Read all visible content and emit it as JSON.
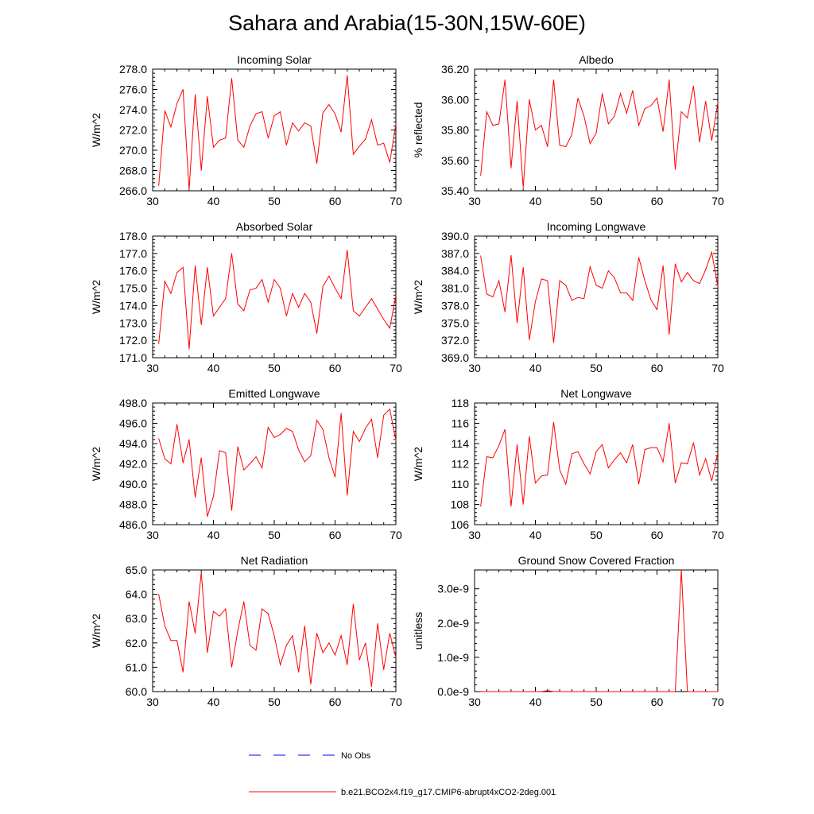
{
  "main_title": "Sahara and Arabia(15-30N,15W-60E)",
  "colors": {
    "model": "#ff0000",
    "obs": "#0000ff",
    "axis": "#000000"
  },
  "legend": [
    {
      "label": "No Obs",
      "style": "dashed",
      "color": "#0000ff"
    },
    {
      "label": "b.e21.BCO2x4.f19_g17.CMIP6-abrupt4xCO2-2deg.001",
      "style": "solid",
      "color": "#ff0000"
    }
  ],
  "chart_data": [
    {
      "type": "line",
      "title": "Incoming Solar",
      "ylabel": "W/m^2",
      "xlim": [
        30,
        70
      ],
      "xticks": [
        "30",
        "40",
        "50",
        "60",
        "70"
      ],
      "ylim": [
        266,
        278
      ],
      "yticks": [
        "266.0",
        "268.0",
        "270.0",
        "272.0",
        "274.0",
        "276.0",
        "278.0"
      ],
      "x": [
        31,
        32,
        33,
        34,
        35,
        36,
        37,
        38,
        39,
        40,
        41,
        42,
        43,
        44,
        45,
        46,
        47,
        48,
        49,
        50,
        51,
        52,
        53,
        54,
        55,
        56,
        57,
        58,
        59,
        60,
        61,
        62,
        63,
        64,
        65,
        66,
        67,
        68,
        69,
        70
      ],
      "series": [
        {
          "name": "b.e21.BCO2x4.f19_g17.CMIP6-abrupt4xCO2-2deg.001",
          "values": [
            266.5,
            273.9,
            272.3,
            274.6,
            276.0,
            266.1,
            275.5,
            268.0,
            275.3,
            270.3,
            271.0,
            271.2,
            277.1,
            271.0,
            270.3,
            272.4,
            273.6,
            273.8,
            271.2,
            273.4,
            273.8,
            270.5,
            272.7,
            271.9,
            272.7,
            272.4,
            268.7,
            273.7,
            274.5,
            273.6,
            271.8,
            277.4,
            269.6,
            270.4,
            271.1,
            273.0,
            270.5,
            270.7,
            268.8,
            272.6
          ]
        }
      ]
    },
    {
      "type": "line",
      "title": "Albedo",
      "ylabel": "% reflected",
      "xlim": [
        30,
        70
      ],
      "xticks": [
        "30",
        "40",
        "50",
        "60",
        "70"
      ],
      "ylim": [
        35.4,
        36.2
      ],
      "yticks": [
        "35.40",
        "35.60",
        "35.80",
        "36.00",
        "36.20"
      ],
      "x": [
        31,
        32,
        33,
        34,
        35,
        36,
        37,
        38,
        39,
        40,
        41,
        42,
        43,
        44,
        45,
        46,
        47,
        48,
        49,
        50,
        51,
        52,
        53,
        54,
        55,
        56,
        57,
        58,
        59,
        60,
        61,
        62,
        63,
        64,
        65,
        66,
        67,
        68,
        69,
        70
      ],
      "series": [
        {
          "name": "b.e21.BCO2x4.f19_g17.CMIP6-abrupt4xCO2-2deg.001",
          "values": [
            35.5,
            35.92,
            35.83,
            35.84,
            36.13,
            35.55,
            35.99,
            35.42,
            36.0,
            35.8,
            35.83,
            35.69,
            36.13,
            35.7,
            35.69,
            35.77,
            36.01,
            35.89,
            35.71,
            35.78,
            36.04,
            35.84,
            35.89,
            36.04,
            35.91,
            36.06,
            35.83,
            35.94,
            35.96,
            36.01,
            35.79,
            36.13,
            35.54,
            35.92,
            35.88,
            36.09,
            35.72,
            35.99,
            35.73,
            35.98
          ]
        }
      ]
    },
    {
      "type": "line",
      "title": "Absorbed Solar",
      "ylabel": "W/m^2",
      "xlim": [
        30,
        70
      ],
      "xticks": [
        "30",
        "40",
        "50",
        "60",
        "70"
      ],
      "ylim": [
        171,
        178
      ],
      "yticks": [
        "171.0",
        "172.0",
        "173.0",
        "174.0",
        "175.0",
        "176.0",
        "177.0",
        "178.0"
      ],
      "x": [
        31,
        32,
        33,
        34,
        35,
        36,
        37,
        38,
        39,
        40,
        41,
        42,
        43,
        44,
        45,
        46,
        47,
        48,
        49,
        50,
        51,
        52,
        53,
        54,
        55,
        56,
        57,
        58,
        59,
        60,
        61,
        62,
        63,
        64,
        65,
        66,
        67,
        68,
        69,
        70
      ],
      "series": [
        {
          "name": "b.e21.BCO2x4.f19_g17.CMIP6-abrupt4xCO2-2deg.001",
          "values": [
            171.8,
            175.4,
            174.7,
            175.9,
            176.2,
            171.5,
            176.3,
            172.9,
            176.2,
            173.4,
            173.9,
            174.4,
            177.0,
            174.1,
            173.7,
            174.9,
            175.0,
            175.5,
            174.2,
            175.5,
            175.0,
            173.4,
            174.7,
            173.9,
            174.7,
            174.2,
            172.4,
            175.1,
            175.7,
            175.0,
            174.4,
            177.2,
            173.7,
            173.4,
            173.9,
            174.4,
            173.8,
            173.2,
            172.7,
            174.6
          ]
        }
      ]
    },
    {
      "type": "line",
      "title": "Incoming Longwave",
      "ylabel": "W/m^2",
      "xlim": [
        30,
        70
      ],
      "xticks": [
        "30",
        "40",
        "50",
        "60",
        "70"
      ],
      "ylim": [
        369,
        390
      ],
      "yticks": [
        "369.0",
        "372.0",
        "375.0",
        "378.0",
        "381.0",
        "384.0",
        "387.0",
        "390.0"
      ],
      "x": [
        31,
        32,
        33,
        34,
        35,
        36,
        37,
        38,
        39,
        40,
        41,
        42,
        43,
        44,
        45,
        46,
        47,
        48,
        49,
        50,
        51,
        52,
        53,
        54,
        55,
        56,
        57,
        58,
        59,
        60,
        61,
        62,
        63,
        64,
        65,
        66,
        67,
        68,
        69,
        70
      ],
      "series": [
        {
          "name": "b.e21.BCO2x4.f19_g17.CMIP6-abrupt4xCO2-2deg.001",
          "values": [
            386.6,
            380.0,
            379.5,
            382.3,
            376.9,
            386.7,
            375.0,
            384.6,
            372.1,
            378.7,
            382.6,
            382.3,
            371.6,
            382.3,
            381.5,
            378.9,
            379.4,
            379.2,
            384.7,
            381.5,
            381.0,
            384.0,
            382.8,
            380.2,
            380.2,
            378.9,
            386.3,
            382.3,
            379.0,
            377.3,
            384.9,
            373.0,
            385.2,
            382.1,
            383.7,
            382.3,
            381.8,
            384.2,
            387.2,
            381.3
          ]
        }
      ]
    },
    {
      "type": "line",
      "title": "Emitted Longwave",
      "ylabel": "W/m^2",
      "xlim": [
        30,
        70
      ],
      "xticks": [
        "30",
        "40",
        "50",
        "60",
        "70"
      ],
      "ylim": [
        486,
        498
      ],
      "yticks": [
        "486.0",
        "488.0",
        "490.0",
        "492.0",
        "494.0",
        "496.0",
        "498.0"
      ],
      "x": [
        31,
        32,
        33,
        34,
        35,
        36,
        37,
        38,
        39,
        40,
        41,
        42,
        43,
        44,
        45,
        46,
        47,
        48,
        49,
        50,
        51,
        52,
        53,
        54,
        55,
        56,
        57,
        58,
        59,
        60,
        61,
        62,
        63,
        64,
        65,
        66,
        67,
        68,
        69,
        70
      ],
      "series": [
        {
          "name": "b.e21.BCO2x4.f19_g17.CMIP6-abrupt4xCO2-2deg.001",
          "values": [
            494.5,
            492.5,
            492.0,
            495.9,
            492.1,
            494.4,
            488.7,
            492.6,
            486.8,
            488.8,
            493.3,
            493.1,
            487.4,
            493.7,
            491.4,
            492.0,
            492.7,
            491.6,
            495.6,
            494.6,
            494.9,
            495.5,
            495.2,
            493.4,
            492.2,
            492.8,
            496.3,
            495.4,
            492.6,
            490.7,
            497.0,
            488.9,
            495.2,
            494.2,
            495.5,
            496.4,
            492.6,
            496.8,
            497.4,
            494.3
          ]
        }
      ]
    },
    {
      "type": "line",
      "title": "Net Longwave",
      "ylabel": "W/m^2",
      "xlim": [
        30,
        70
      ],
      "xticks": [
        "30",
        "40",
        "50",
        "60",
        "70"
      ],
      "ylim": [
        106,
        118
      ],
      "yticks": [
        "106",
        "108",
        "110",
        "112",
        "114",
        "116",
        "118"
      ],
      "x": [
        31,
        32,
        33,
        34,
        35,
        36,
        37,
        38,
        39,
        40,
        41,
        42,
        43,
        44,
        45,
        46,
        47,
        48,
        49,
        50,
        51,
        52,
        53,
        54,
        55,
        56,
        57,
        58,
        59,
        60,
        61,
        62,
        63,
        64,
        65,
        66,
        67,
        68,
        69,
        70
      ],
      "series": [
        {
          "name": "b.e21.BCO2x4.f19_g17.CMIP6-abrupt4xCO2-2deg.001",
          "values": [
            107.8,
            112.7,
            112.6,
            113.8,
            115.4,
            107.8,
            113.9,
            108.0,
            114.7,
            110.1,
            110.8,
            110.9,
            116.1,
            111.4,
            110.0,
            113.0,
            113.2,
            112.0,
            111.0,
            113.2,
            113.9,
            111.6,
            112.4,
            113.1,
            112.1,
            113.9,
            110.0,
            113.4,
            113.6,
            113.6,
            112.2,
            116.0,
            110.1,
            112.1,
            112.0,
            114.1,
            110.9,
            112.5,
            110.3,
            113.1
          ]
        }
      ]
    },
    {
      "type": "line",
      "title": "Net Radiation",
      "ylabel": "W/m^2",
      "xlim": [
        30,
        70
      ],
      "xticks": [
        "30",
        "40",
        "50",
        "60",
        "70"
      ],
      "ylim": [
        60,
        65
      ],
      "yticks": [
        "60.0",
        "61.0",
        "62.0",
        "63.0",
        "64.0",
        "65.0"
      ],
      "x": [
        31,
        32,
        33,
        34,
        35,
        36,
        37,
        38,
        39,
        40,
        41,
        42,
        43,
        44,
        45,
        46,
        47,
        48,
        49,
        50,
        51,
        52,
        53,
        54,
        55,
        56,
        57,
        58,
        59,
        60,
        61,
        62,
        63,
        64,
        65,
        66,
        67,
        68,
        69,
        70
      ],
      "series": [
        {
          "name": "b.e21.BCO2x4.f19_g17.CMIP6-abrupt4xCO2-2deg.001",
          "values": [
            64.0,
            62.7,
            62.1,
            62.1,
            60.8,
            63.7,
            62.4,
            64.9,
            61.6,
            63.3,
            63.1,
            63.4,
            61.0,
            62.5,
            63.7,
            61.9,
            61.7,
            63.4,
            63.2,
            62.3,
            61.1,
            61.9,
            62.3,
            60.8,
            62.7,
            60.3,
            62.4,
            61.6,
            62.0,
            61.5,
            62.3,
            61.1,
            63.6,
            61.3,
            62.0,
            60.2,
            62.8,
            60.9,
            62.4,
            61.4
          ]
        }
      ]
    },
    {
      "type": "line",
      "title": "Ground Snow Covered Fraction",
      "ylabel": "unitless",
      "xlim": [
        30,
        70
      ],
      "xticks": [
        "30",
        "40",
        "50",
        "60",
        "70"
      ],
      "ylim": [
        0,
        3.55e-09
      ],
      "yticks": [
        "0.0e-9",
        "1.0e-9",
        "2.0e-9",
        "3.0e-9"
      ],
      "ytick_values": [
        0,
        1e-09,
        2e-09,
        3e-09
      ],
      "x": [
        31,
        32,
        33,
        34,
        35,
        36,
        37,
        38,
        39,
        40,
        41,
        42,
        43,
        44,
        45,
        46,
        47,
        48,
        49,
        50,
        51,
        52,
        53,
        54,
        55,
        56,
        57,
        58,
        59,
        60,
        61,
        62,
        63,
        64,
        65,
        66,
        67,
        68,
        69,
        70
      ],
      "series": [
        {
          "name": "b.e21.BCO2x4.f19_g17.CMIP6-abrupt4xCO2-2deg.001",
          "values": [
            0,
            0,
            0,
            0,
            0,
            0,
            0,
            0,
            0,
            0,
            0,
            3e-11,
            0,
            0,
            0,
            0,
            0,
            0,
            0,
            0,
            0,
            0,
            0,
            0,
            0,
            0,
            0,
            0,
            0,
            0,
            0,
            0,
            0,
            3.55e-09,
            0,
            0,
            0,
            0,
            0,
            0
          ]
        }
      ]
    }
  ]
}
